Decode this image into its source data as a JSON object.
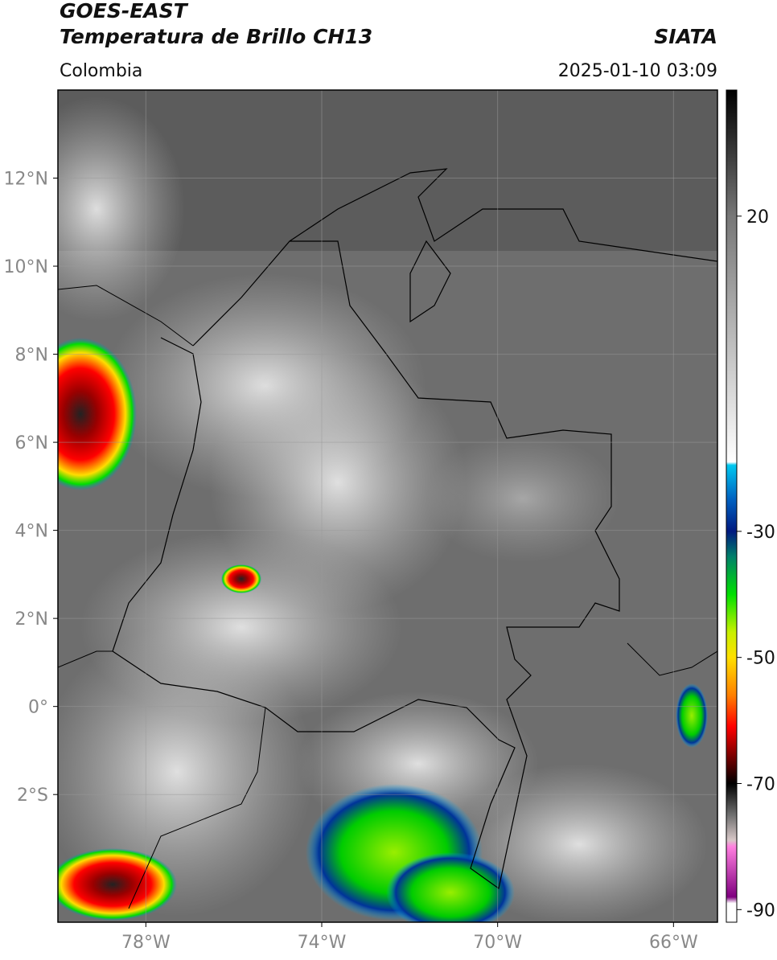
{
  "chart_data": {
    "type": "map",
    "title": "GOES-EAST",
    "subtitle": "Temperatura de Brillo CH13",
    "source": "SIATA",
    "region": "Colombia",
    "timestamp": "2025-01-10 03:09",
    "xlim": [
      -80,
      -65
    ],
    "ylim": [
      -4.9,
      14
    ],
    "xticks": [
      {
        "value": -78,
        "label": "78°W"
      },
      {
        "value": -74,
        "label": "74°W"
      },
      {
        "value": -70,
        "label": "70°W"
      },
      {
        "value": -66,
        "label": "66°W"
      }
    ],
    "yticks": [
      {
        "value": 12,
        "label": "12°N"
      },
      {
        "value": 10,
        "label": "10°N"
      },
      {
        "value": 8,
        "label": "8°N"
      },
      {
        "value": 6,
        "label": "6°N"
      },
      {
        "value": 4,
        "label": "4°N"
      },
      {
        "value": 2,
        "label": "2°N"
      },
      {
        "value": 0,
        "label": "0°"
      },
      {
        "value": -2,
        "label": "2°S"
      }
    ],
    "grid": true,
    "clim": [
      -92,
      40
    ],
    "cticks": [
      20,
      -30,
      -50,
      -70,
      -90
    ],
    "colormap": [
      {
        "value": 40,
        "color": "#000000"
      },
      {
        "value": 30,
        "color": "#3a3a3a"
      },
      {
        "value": 20,
        "color": "#777777"
      },
      {
        "value": 0,
        "color": "#bdbdbd"
      },
      {
        "value": -19,
        "color": "#ffffff"
      },
      {
        "value": -19.5,
        "color": "#00c8f0"
      },
      {
        "value": -25,
        "color": "#0060c0"
      },
      {
        "value": -30,
        "color": "#001a80"
      },
      {
        "value": -34,
        "color": "#00806a"
      },
      {
        "value": -40,
        "color": "#00e000"
      },
      {
        "value": -46,
        "color": "#c8f000"
      },
      {
        "value": -50,
        "color": "#ffe000"
      },
      {
        "value": -56,
        "color": "#ff8000"
      },
      {
        "value": -61,
        "color": "#ff0000"
      },
      {
        "value": -66,
        "color": "#700000"
      },
      {
        "value": -70,
        "color": "#000000"
      },
      {
        "value": -75,
        "color": "#707070"
      },
      {
        "value": -79,
        "color": "#d8c8c8"
      },
      {
        "value": -80,
        "color": "#ff80e0"
      },
      {
        "value": -88,
        "color": "#800080"
      },
      {
        "value": -89,
        "color": "#ffffff"
      },
      {
        "value": -92,
        "color": "#ffffff"
      }
    ]
  }
}
